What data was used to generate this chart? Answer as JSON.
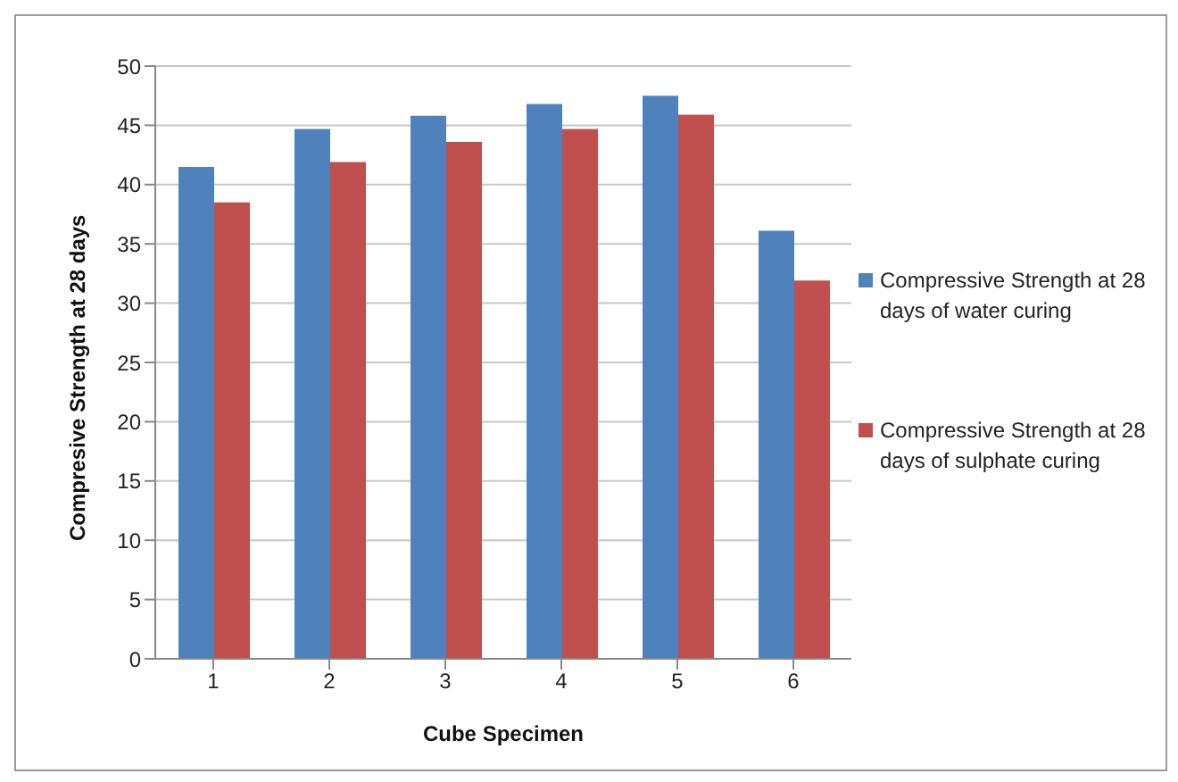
{
  "chart_data": {
    "type": "bar",
    "xlabel": "Cube Specimen",
    "ylabel": "Compresive Strength at 28 days",
    "categories": [
      "1",
      "2",
      "3",
      "4",
      "5",
      "6"
    ],
    "series": [
      {
        "name": "Compressive Strength at 28 days of water curing",
        "color": "#4f81bd",
        "values": [
          41.5,
          44.7,
          45.8,
          46.8,
          47.5,
          36.1
        ]
      },
      {
        "name": "Compressive Strength at 28 days of sulphate curing",
        "color": "#c0504d",
        "values": [
          38.5,
          41.9,
          43.6,
          44.7,
          45.9,
          31.9
        ]
      }
    ],
    "ylim": [
      0,
      50
    ],
    "yticks": [
      0,
      5,
      10,
      15,
      20,
      25,
      30,
      35,
      40,
      45,
      50
    ],
    "grid": "y",
    "legend": "right"
  }
}
